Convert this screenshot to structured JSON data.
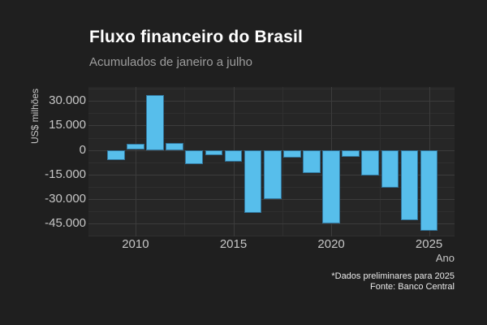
{
  "chart_data": {
    "type": "bar",
    "title": "Fluxo financeiro do Brasil",
    "subtitle": "Acumulados de janeiro a julho",
    "xlabel": "Ano",
    "ylabel": "US$ milhões",
    "caption": [
      "*Dados preliminares para 2025",
      "Fonte: Banco Central"
    ],
    "categories": [
      2009,
      2010,
      2011,
      2012,
      2013,
      2014,
      2015,
      2016,
      2017,
      2018,
      2019,
      2020,
      2021,
      2022,
      2023,
      2024,
      2025
    ],
    "values": [
      -6200,
      3800,
      33900,
      4500,
      -8700,
      -3000,
      -7200,
      -38700,
      -30000,
      -4700,
      -14100,
      -45300,
      -4300,
      -15500,
      -23000,
      -43300,
      -49800
    ],
    "unit": "US$ milhões",
    "ylim": [
      -53100,
      38650
    ],
    "xlim": [
      2007.6,
      2026.3
    ],
    "bar_width_x": 0.9,
    "grid": true,
    "legend": false,
    "y_major_ticks": [
      {
        "label": "30.000",
        "value": 30000
      },
      {
        "label": "15.000",
        "value": 15000
      },
      {
        "label": "0",
        "value": 0
      },
      {
        "label": "-15.000",
        "value": -15000
      },
      {
        "label": "-30.000",
        "value": -30000
      },
      {
        "label": "-45.000",
        "value": -45000
      }
    ],
    "y_minor_values": [
      37500,
      22500,
      7500,
      -7500,
      -22500,
      -37500,
      -52500
    ],
    "x_major_ticks": [
      {
        "label": "2010",
        "value": 2010
      },
      {
        "label": "2015",
        "value": 2015
      },
      {
        "label": "2020",
        "value": 2020
      },
      {
        "label": "2025",
        "value": 2025
      }
    ],
    "x_minor_values": [
      2012.5,
      2017.5,
      2022.5
    ]
  },
  "colors": {
    "background": "#1f1f1f",
    "panel": "#262626",
    "grid_major": "#3c3c3c",
    "grid_minor": "#2f2f2f",
    "bar": "#57beeb",
    "bar_border": "#31759c",
    "title_text": "#ffffff",
    "subtitle_text": "#9d9d9d",
    "axis_text": "#c6c6c6",
    "caption_text": "#e9e9e9"
  }
}
